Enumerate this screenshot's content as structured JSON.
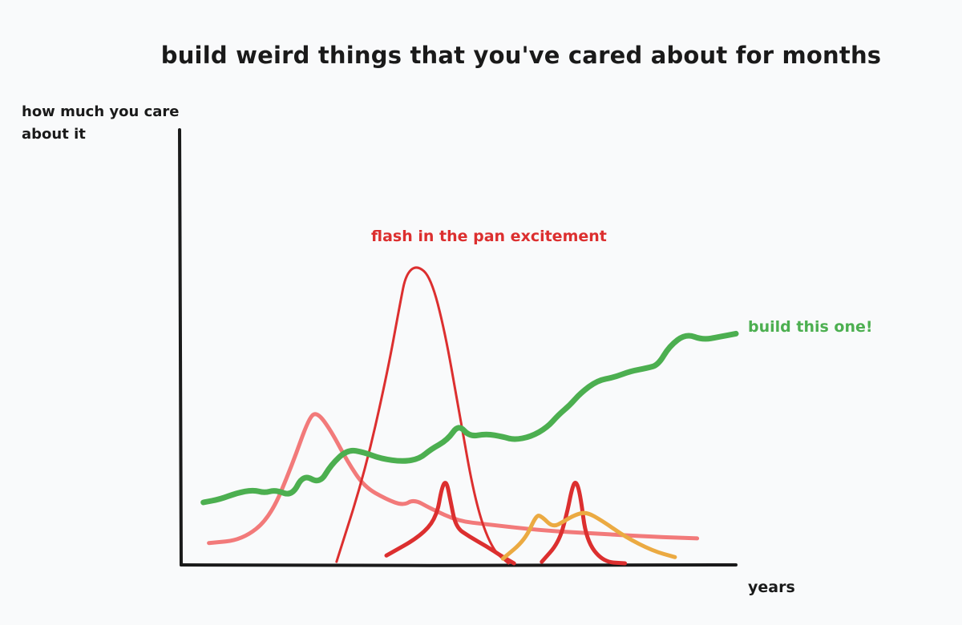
{
  "chart_data": {
    "type": "line",
    "title": "build weird things that you've cared about for months",
    "ylabel": "how much you care about it",
    "xlabel": "years",
    "grid": false,
    "xlim": [
      0,
      10
    ],
    "ylim": [
      0,
      10
    ],
    "annotations": [
      {
        "text": "flash in the pan excitement",
        "color": "#dc2f2f"
      },
      {
        "text": "build this one!",
        "color": "#4caf50"
      }
    ],
    "series": [
      {
        "color": "#f27a7a",
        "values": [
          [
            0.5,
            0.7
          ],
          [
            1.1,
            0.8
          ],
          [
            1.6,
            1.5
          ],
          [
            2.0,
            3.2
          ],
          [
            2.3,
            4.7
          ],
          [
            2.45,
            4.9
          ],
          [
            2.7,
            4.3
          ],
          [
            3.0,
            3.3
          ],
          [
            3.3,
            2.5
          ],
          [
            3.7,
            2.1
          ],
          [
            4.0,
            1.9
          ],
          [
            4.2,
            2.1
          ],
          [
            4.5,
            1.8
          ],
          [
            5.0,
            1.4
          ],
          [
            5.5,
            1.3
          ],
          [
            6.5,
            1.1
          ],
          [
            7.5,
            1.0
          ],
          [
            8.5,
            0.9
          ],
          [
            9.3,
            0.85
          ]
        ]
      },
      {
        "color": "#dc2f2f",
        "values": [
          [
            2.8,
            0.1
          ],
          [
            3.3,
            2.9
          ],
          [
            3.7,
            6.0
          ],
          [
            3.95,
            8.4
          ],
          [
            4.05,
            9.3
          ],
          [
            4.25,
            9.6
          ],
          [
            4.5,
            9.2
          ],
          [
            4.75,
            7.5
          ],
          [
            5.0,
            5.0
          ],
          [
            5.3,
            2.0
          ],
          [
            5.6,
            0.5
          ],
          [
            5.9,
            0.05
          ]
        ]
      },
      {
        "color": "#dc2f2f",
        "values": [
          [
            3.7,
            0.3
          ],
          [
            4.3,
            0.9
          ],
          [
            4.6,
            1.5
          ],
          [
            4.7,
            2.5
          ],
          [
            4.78,
            2.7
          ],
          [
            4.85,
            2.1
          ],
          [
            4.95,
            1.2
          ],
          [
            5.2,
            0.9
          ],
          [
            5.5,
            0.6
          ],
          [
            5.8,
            0.25
          ],
          [
            6.0,
            0.05
          ]
        ]
      },
      {
        "color": "#dc2f2f",
        "values": [
          [
            6.5,
            0.1
          ],
          [
            6.8,
            0.7
          ],
          [
            6.95,
            1.6
          ],
          [
            7.05,
            2.5
          ],
          [
            7.12,
            2.7
          ],
          [
            7.2,
            2.2
          ],
          [
            7.3,
            0.8
          ],
          [
            7.6,
            0.1
          ],
          [
            8.0,
            0.05
          ]
        ]
      },
      {
        "color": "#ebaa42",
        "values": [
          [
            5.8,
            0.2
          ],
          [
            6.2,
            0.8
          ],
          [
            6.4,
            1.6
          ],
          [
            6.5,
            1.55
          ],
          [
            6.7,
            1.2
          ],
          [
            6.9,
            1.4
          ],
          [
            7.1,
            1.6
          ],
          [
            7.3,
            1.7
          ],
          [
            7.6,
            1.4
          ],
          [
            8.0,
            0.9
          ],
          [
            8.5,
            0.45
          ],
          [
            8.9,
            0.25
          ]
        ]
      },
      {
        "color": "#4caf50",
        "values": [
          [
            0.4,
            2.0
          ],
          [
            0.7,
            2.1
          ],
          [
            1.0,
            2.3
          ],
          [
            1.3,
            2.4
          ],
          [
            1.5,
            2.3
          ],
          [
            1.7,
            2.4
          ],
          [
            2.0,
            2.2
          ],
          [
            2.2,
            2.9
          ],
          [
            2.5,
            2.6
          ],
          [
            2.7,
            3.2
          ],
          [
            3.0,
            3.7
          ],
          [
            3.3,
            3.6
          ],
          [
            3.6,
            3.4
          ],
          [
            4.0,
            3.3
          ],
          [
            4.3,
            3.4
          ],
          [
            4.5,
            3.7
          ],
          [
            4.8,
            4.0
          ],
          [
            5.0,
            4.5
          ],
          [
            5.2,
            4.1
          ],
          [
            5.5,
            4.2
          ],
          [
            5.8,
            4.1
          ],
          [
            6.0,
            4.0
          ],
          [
            6.3,
            4.1
          ],
          [
            6.6,
            4.4
          ],
          [
            6.8,
            4.8
          ],
          [
            7.0,
            5.1
          ],
          [
            7.2,
            5.5
          ],
          [
            7.5,
            5.9
          ],
          [
            7.8,
            6.0
          ],
          [
            8.1,
            6.2
          ],
          [
            8.4,
            6.3
          ],
          [
            8.6,
            6.4
          ],
          [
            8.8,
            7.0
          ],
          [
            9.1,
            7.4
          ],
          [
            9.4,
            7.2
          ],
          [
            9.7,
            7.3
          ],
          [
            10.0,
            7.4
          ]
        ]
      }
    ]
  }
}
